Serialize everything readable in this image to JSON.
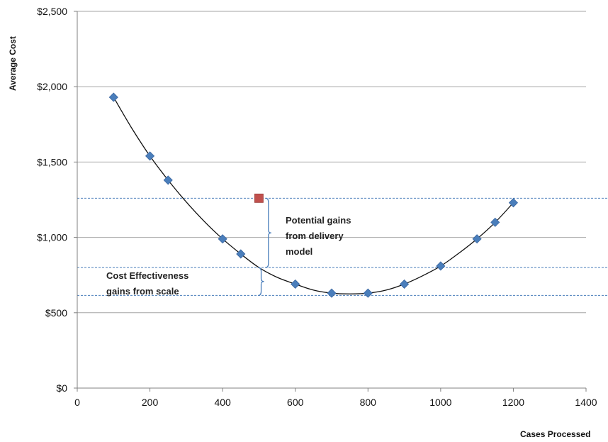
{
  "chart_data": {
    "type": "scatter",
    "xlabel": "Cases Processed",
    "ylabel": "Average Cost",
    "xlim": [
      0,
      1400
    ],
    "ylim": [
      0,
      2500
    ],
    "x_ticks": [
      0,
      200,
      400,
      600,
      800,
      1000,
      1200,
      1400
    ],
    "y_ticks": [
      0,
      500,
      1000,
      1500,
      2000,
      2500
    ],
    "y_tick_labels": [
      "$0",
      "$500",
      "$1,000",
      "$1,500",
      "$2,000",
      "$2,500"
    ],
    "grid": "horizontal",
    "series": [
      {
        "marker": "diamond",
        "color": "#4A7EBB",
        "x": [
          100,
          200,
          250,
          400,
          450,
          600,
          700,
          800,
          900,
          1000,
          1100,
          1150,
          1200
        ],
        "y": [
          1930,
          1540,
          1380,
          990,
          890,
          690,
          630,
          630,
          690,
          810,
          990,
          1100,
          1230
        ]
      },
      {
        "marker": "square",
        "color": "#C0504D",
        "x": [
          500
        ],
        "y": [
          1260
        ]
      }
    ],
    "trendline": {
      "color": "#111111",
      "x": [
        100,
        150,
        200,
        250,
        300,
        350,
        400,
        450,
        500,
        550,
        600,
        650,
        700,
        750,
        800,
        850,
        900,
        950,
        1000,
        1050,
        1100,
        1150,
        1200
      ],
      "y": [
        1930,
        1725,
        1540,
        1380,
        1235,
        1105,
        990,
        890,
        800,
        735,
        690,
        650,
        630,
        625,
        630,
        650,
        690,
        745,
        810,
        895,
        990,
        1100,
        1230
      ]
    },
    "reference_lines": {
      "color": "#4A7EBB",
      "values": [
        1260,
        800,
        615
      ]
    },
    "annotations": {
      "delivery_model": {
        "lines": [
          "Potential gains",
          "from delivery",
          "model"
        ],
        "x": 510,
        "y_top": 1260,
        "y_bottom": 800
      },
      "scale": {
        "lines": [
          "Cost Effectiveness",
          "gains from scale"
        ],
        "x": 510,
        "y_top": 800,
        "y_bottom": 615
      }
    }
  }
}
